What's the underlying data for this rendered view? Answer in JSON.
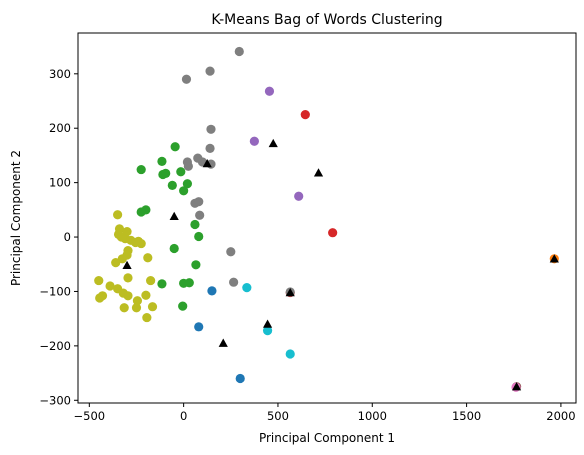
{
  "chart_data": {
    "type": "scatter",
    "title": "K-Means Bag of Words Clustering",
    "xlabel": "Principal Component 1",
    "ylabel": "Principal Component 2",
    "xlim": [
      -560,
      2080
    ],
    "ylim": [
      -305,
      375
    ],
    "x_ticks": [
      -500,
      0,
      500,
      1000,
      1500,
      2000
    ],
    "y_ticks": [
      -300,
      -200,
      -100,
      0,
      100,
      200,
      300
    ],
    "grid": false,
    "legend": "none",
    "series": [
      {
        "color": "#1f77b4",
        "marker": "circle",
        "points": [
          [
            150,
            -99
          ],
          [
            80,
            -165
          ],
          [
            300,
            -260
          ]
        ]
      },
      {
        "color": "#ff7f0e",
        "marker": "circle",
        "points": [
          [
            1965,
            -40
          ]
        ]
      },
      {
        "color": "#2ca02c",
        "marker": "circle",
        "points": [
          [
            -45,
            166
          ],
          [
            -115,
            139
          ],
          [
            -225,
            124
          ],
          [
            -110,
            115
          ],
          [
            -95,
            117
          ],
          [
            -200,
            50
          ],
          [
            -225,
            46
          ],
          [
            -60,
            95
          ],
          [
            0,
            85
          ],
          [
            20,
            98
          ],
          [
            -15,
            120
          ],
          [
            60,
            23
          ],
          [
            80,
            1
          ],
          [
            -50,
            -21
          ],
          [
            65,
            -51
          ],
          [
            0,
            -85
          ],
          [
            30,
            -84
          ],
          [
            -115,
            -86
          ],
          [
            -5,
            -127
          ]
        ]
      },
      {
        "color": "#d62728",
        "marker": "circle",
        "points": [
          [
            645,
            225
          ],
          [
            790,
            8
          ],
          [
            565,
            -102
          ]
        ]
      },
      {
        "color": "#9467bd",
        "marker": "circle",
        "points": [
          [
            455,
            268
          ],
          [
            375,
            176
          ],
          [
            610,
            75
          ]
        ]
      },
      {
        "color": "#8c564b",
        "marker": "circle",
        "points": [
          [
            1765,
            -275
          ]
        ]
      },
      {
        "color": "#e377c2",
        "marker": "circle",
        "points": [
          [
            1762,
            -276
          ]
        ]
      },
      {
        "color": "#7f7f7f",
        "marker": "circle",
        "points": [
          [
            295,
            341
          ],
          [
            15,
            290
          ],
          [
            140,
            305
          ],
          [
            145,
            198
          ],
          [
            140,
            163
          ],
          [
            145,
            134
          ],
          [
            100,
            138
          ],
          [
            20,
            138
          ],
          [
            25,
            130
          ],
          [
            75,
            145
          ],
          [
            60,
            62
          ],
          [
            80,
            65
          ],
          [
            85,
            40
          ],
          [
            250,
            -27
          ],
          [
            265,
            -83
          ],
          [
            565,
            -101
          ]
        ]
      },
      {
        "color": "#bcbd22",
        "marker": "circle",
        "points": [
          [
            -350,
            41
          ],
          [
            -340,
            15
          ],
          [
            -300,
            10
          ],
          [
            -345,
            5
          ],
          [
            -330,
            0
          ],
          [
            -310,
            -3
          ],
          [
            -280,
            -6
          ],
          [
            -255,
            -10
          ],
          [
            -240,
            -8
          ],
          [
            -225,
            -12
          ],
          [
            -295,
            -25
          ],
          [
            -300,
            -33
          ],
          [
            -325,
            -40
          ],
          [
            -360,
            -47
          ],
          [
            -190,
            -38
          ],
          [
            -295,
            -75
          ],
          [
            -175,
            -80
          ],
          [
            -390,
            -90
          ],
          [
            -450,
            -80
          ],
          [
            -350,
            -95
          ],
          [
            -320,
            -103
          ],
          [
            -295,
            -108
          ],
          [
            -445,
            -112
          ],
          [
            -430,
            -108
          ],
          [
            -200,
            -107
          ],
          [
            -245,
            -117
          ],
          [
            -315,
            -130
          ],
          [
            -250,
            -130
          ],
          [
            -165,
            -128
          ],
          [
            -195,
            -148
          ]
        ]
      },
      {
        "color": "#17becf",
        "marker": "circle",
        "points": [
          [
            335,
            -93
          ],
          [
            445,
            -172
          ],
          [
            565,
            -215
          ]
        ]
      },
      {
        "name": "centroids",
        "color": "#000000",
        "marker": "triangle",
        "points": [
          [
            475,
            172
          ],
          [
            715,
            118
          ],
          [
            -50,
            38
          ],
          [
            125,
            135
          ],
          [
            -300,
            -52
          ],
          [
            565,
            -102
          ],
          [
            445,
            -160
          ],
          [
            210,
            -195
          ],
          [
            1965,
            -40
          ],
          [
            1765,
            -275
          ]
        ]
      }
    ]
  }
}
